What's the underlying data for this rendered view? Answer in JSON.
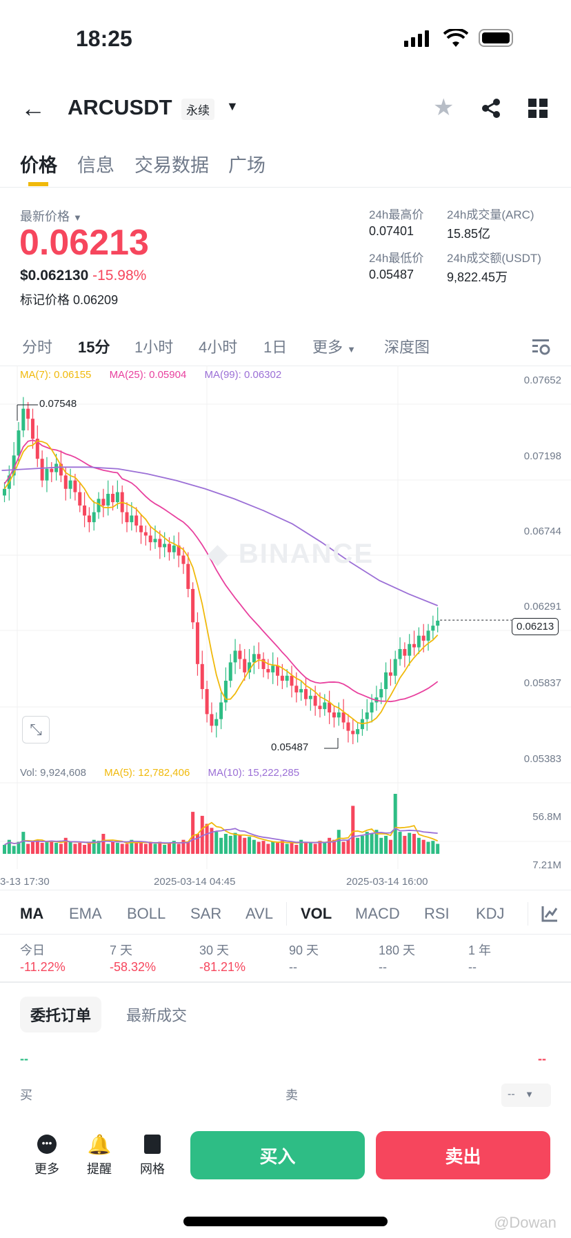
{
  "status_bar": {
    "time": "18:25"
  },
  "header": {
    "symbol": "ARCUSDT",
    "contract_type": "永续"
  },
  "tabs": [
    "价格",
    "信息",
    "交易数据",
    "广场"
  ],
  "price": {
    "label": "最新价格",
    "last": "0.06213",
    "usd": "$0.062130",
    "change": "-15.98%",
    "mark_label": "标记价格",
    "mark": "0.06209"
  },
  "stats": {
    "high_label": "24h最高价",
    "high": "0.07401",
    "low_label": "24h最低价",
    "low": "0.05487",
    "vol_label": "24h成交量(ARC)",
    "vol": "15.85亿",
    "amount_label": "24h成交额(USDT)",
    "amount": "9,822.45万"
  },
  "intervals": [
    "分时",
    "15分",
    "1小时",
    "4小时",
    "1日",
    "更多",
    "深度图"
  ],
  "ma_legend": {
    "ma7": "MA(7): 0.06155",
    "ma25": "MA(25): 0.05904",
    "ma99": "MA(99): 0.06302"
  },
  "vol_legend": {
    "vol": "Vol: 9,924,608",
    "ma5": "MA(5): 12,782,406",
    "ma10": "MA(10): 15,222,285"
  },
  "watermark": "BINANCE",
  "colors": {
    "up": "#2ebd85",
    "down": "#f6465d",
    "ma7": "#f0b90b",
    "ma25": "#e8409e",
    "ma99": "#9b6fd6"
  },
  "chart_data": {
    "type": "candlestick",
    "price_axis": [
      "0.07652",
      "0.07198",
      "0.06744",
      "0.06291",
      "0.05837",
      "0.05383"
    ],
    "ylim": [
      0.05383,
      0.07652
    ],
    "vol_axis": [
      "56.8M",
      "7.21M"
    ],
    "time_labels": [
      "3-13 17:30",
      "2025-03-14 04:45",
      "2025-03-14 16:00"
    ],
    "high_marker": "0.07548",
    "low_marker": "0.05487",
    "current_price": "0.06213",
    "closes": [
      0.07,
      0.0708,
      0.072,
      0.0735,
      0.0748,
      0.0742,
      0.073,
      0.0718,
      0.0705,
      0.0712,
      0.071,
      0.0715,
      0.0708,
      0.07,
      0.0705,
      0.0698,
      0.069,
      0.0684,
      0.068,
      0.0686,
      0.0694,
      0.069,
      0.0697,
      0.0692,
      0.0698,
      0.0686,
      0.068,
      0.0684,
      0.0678,
      0.0674,
      0.0672,
      0.0668,
      0.067,
      0.0665,
      0.0667,
      0.0662,
      0.0666,
      0.066,
      0.0655,
      0.064,
      0.062,
      0.0595,
      0.058,
      0.0565,
      0.0558,
      0.0562,
      0.0572,
      0.0585,
      0.0596,
      0.0603,
      0.0598,
      0.059,
      0.0596,
      0.0601,
      0.0598,
      0.0592,
      0.059,
      0.0594,
      0.0588,
      0.0585,
      0.0588,
      0.0582,
      0.0578,
      0.058,
      0.0574,
      0.0576,
      0.057,
      0.0568,
      0.0572,
      0.0566,
      0.0563,
      0.0566,
      0.056,
      0.0555,
      0.0553,
      0.0556,
      0.0562,
      0.0566,
      0.0572,
      0.0575,
      0.058,
      0.059,
      0.0588,
      0.0598,
      0.0604,
      0.06,
      0.0607,
      0.0605,
      0.0612,
      0.0609,
      0.0615,
      0.0618,
      0.0621
    ],
    "volumes_m": [
      9,
      14,
      8,
      12,
      22,
      10,
      12,
      14,
      11,
      13,
      12,
      11,
      10,
      16,
      12,
      10,
      11,
      9,
      11,
      14,
      13,
      20,
      10,
      12,
      11,
      10,
      10,
      14,
      11,
      12,
      10,
      11,
      10,
      12,
      9,
      11,
      13,
      10,
      14,
      12,
      42,
      20,
      38,
      30,
      26,
      22,
      16,
      20,
      18,
      21,
      19,
      16,
      17,
      14,
      12,
      13,
      10,
      12,
      11,
      13,
      10,
      11,
      9,
      14,
      12,
      11,
      10,
      13,
      11,
      16,
      14,
      24,
      12,
      14,
      48,
      16,
      18,
      22,
      20,
      24,
      16,
      18,
      14,
      60,
      22,
      18,
      21,
      20,
      16,
      14,
      12,
      13,
      10
    ],
    "ma99": [
      0.0711,
      0.0712,
      0.0713,
      0.0713,
      0.0712,
      0.0709,
      0.0705,
      0.07,
      0.0694,
      0.0687,
      0.0679,
      0.0668,
      0.0656,
      0.0645,
      0.0637,
      0.063
    ]
  },
  "indicators": [
    "MA",
    "EMA",
    "BOLL",
    "SAR",
    "AVL",
    "VOL",
    "MACD",
    "RSI",
    "KDJ"
  ],
  "performance": [
    {
      "label": "今日",
      "value": "-11.22%"
    },
    {
      "label": "7 天",
      "value": "-58.32%"
    },
    {
      "label": "30 天",
      "value": "-81.21%"
    },
    {
      "label": "90 天",
      "value": "--"
    },
    {
      "label": "180 天",
      "value": "--"
    },
    {
      "label": "1 年",
      "value": "--"
    }
  ],
  "orders": {
    "tab_active": "委托订单",
    "tab_other": "最新成交",
    "buy_value": "--",
    "sell_value": "--",
    "buy_label": "买",
    "sell_label": "卖",
    "precision": "--"
  },
  "bottom": {
    "more": "更多",
    "alert": "提醒",
    "grid": "网格",
    "buy": "买入",
    "sell": "卖出"
  },
  "footer_watermark": "@Dowan"
}
